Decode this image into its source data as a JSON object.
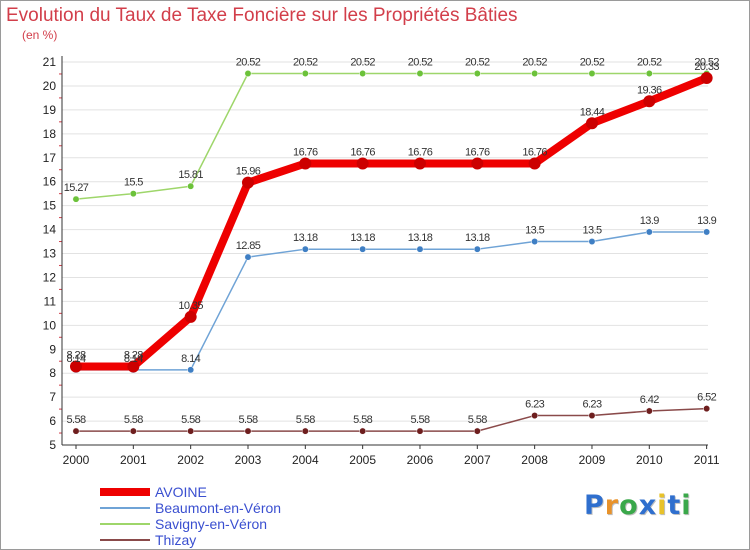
{
  "title": "Evolution du Taux de Taxe Foncière sur les Propriétés Bâties",
  "unit": "(en %)",
  "logo": {
    "text": "Proxiti",
    "letters": [
      "P",
      "r",
      "o",
      "x",
      "i",
      "t",
      "i"
    ],
    "colors": [
      "#2f6fce",
      "#e8922a",
      "#3aa84a",
      "#2f6fce",
      "#e8c22a",
      "#2f6fce",
      "#3aa84a"
    ]
  },
  "chart_data": {
    "type": "line",
    "title": "Evolution du Taux de Taxe Foncière sur les Propriétés Bâties",
    "ylabel": "(en %)",
    "xlabel": "",
    "x": [
      "2000",
      "2001",
      "2002",
      "2003",
      "2004",
      "2005",
      "2006",
      "2007",
      "2008",
      "2009",
      "2010",
      "2011"
    ],
    "ylim": [
      5,
      21
    ],
    "yticks": [
      "5",
      "6",
      "7",
      "8",
      "9",
      "10",
      "11",
      "12",
      "13",
      "14",
      "15",
      "16",
      "17",
      "18",
      "19",
      "20",
      "21"
    ],
    "grid": "horizontal",
    "legend_position": "bottom-left",
    "series": [
      {
        "name": "AVOINE",
        "values": [
          8.28,
          8.28,
          10.35,
          15.96,
          16.76,
          16.76,
          16.76,
          16.76,
          16.76,
          18.44,
          19.36,
          20.33
        ],
        "labels": [
          "8.28",
          "8.28",
          "10.35",
          "15.96",
          "16.76",
          "16.76",
          "16.76",
          "16.76",
          "16.76",
          "18.44",
          "19.36",
          "20.33"
        ],
        "color": "#ee0000",
        "marker_color": "#cc0000"
      },
      {
        "name": "Beaumont-en-Véron",
        "values": [
          8.14,
          8.14,
          8.14,
          12.85,
          13.18,
          13.18,
          13.18,
          13.18,
          13.5,
          13.5,
          13.9,
          13.9
        ],
        "labels": [
          "8.14",
          "8.14",
          "8.14",
          "12.85",
          "13.18",
          "13.18",
          "13.18",
          "13.18",
          "13.5",
          "13.5",
          "13.9",
          "13.9"
        ],
        "color": "#6fa3d6",
        "marker_color": "#3f7fc4"
      },
      {
        "name": "Savigny-en-Véron",
        "values": [
          15.27,
          15.5,
          15.81,
          20.52,
          20.52,
          20.52,
          20.52,
          20.52,
          20.52,
          20.52,
          20.52,
          20.52
        ],
        "labels": [
          "15.27",
          "15.5",
          "15.81",
          "20.52",
          "20.52",
          "20.52",
          "20.52",
          "20.52",
          "20.52",
          "20.52",
          "20.52",
          "20.52"
        ],
        "color": "#9ed66a",
        "marker_color": "#6cc23a"
      },
      {
        "name": "Thizay",
        "values": [
          5.58,
          5.58,
          5.58,
          5.58,
          5.58,
          5.58,
          5.58,
          5.58,
          6.23,
          6.23,
          6.42,
          6.52
        ],
        "labels": [
          "5.58",
          "5.58",
          "5.58",
          "5.58",
          "5.58",
          "5.58",
          "5.58",
          "5.58",
          "6.23",
          "6.23",
          "6.42",
          "6.52"
        ],
        "color": "#8a4a4a",
        "marker_color": "#6e1e1e"
      }
    ]
  }
}
